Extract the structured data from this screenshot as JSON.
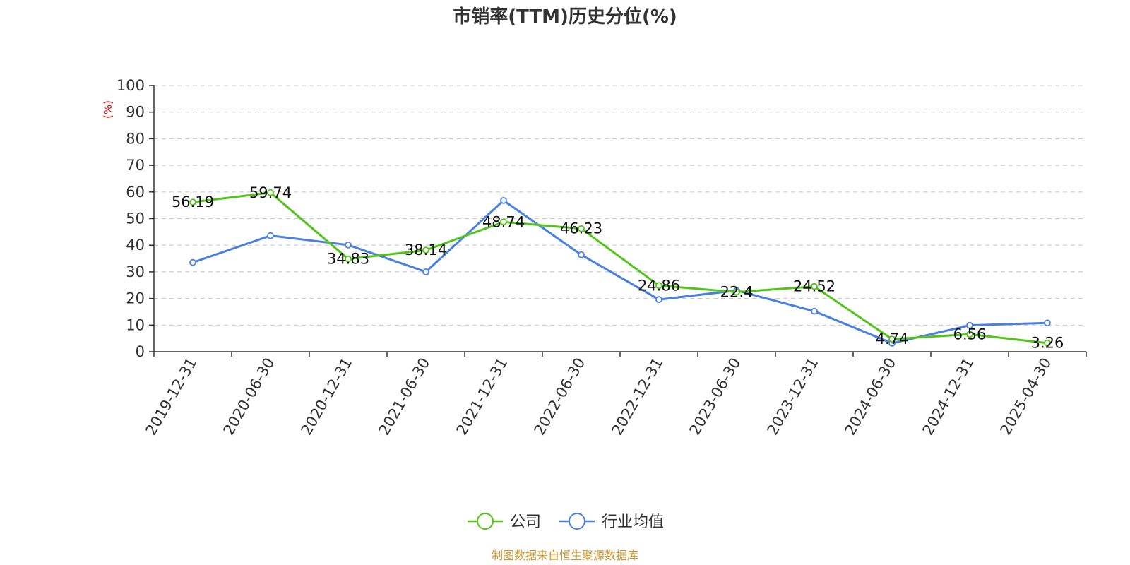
{
  "chart_data": {
    "type": "line",
    "title": "市销率(TTM)历史分位(%)",
    "ylabel": "(%)",
    "xlabel": "",
    "ylim": [
      0,
      100
    ],
    "yticks": [
      0,
      10,
      20,
      30,
      40,
      50,
      60,
      70,
      80,
      90,
      100
    ],
    "grid": true,
    "legend_position": "bottom",
    "categories": [
      "2019-12-31",
      "2020-06-30",
      "2020-12-31",
      "2021-06-30",
      "2021-12-31",
      "2022-06-30",
      "2022-12-31",
      "2023-06-30",
      "2023-12-31",
      "2024-06-30",
      "2024-12-31",
      "2025-04-30"
    ],
    "series": [
      {
        "name": "公司",
        "color": "#52c41a",
        "values": [
          56.19,
          59.74,
          34.83,
          38.14,
          48.74,
          46.23,
          24.86,
          22.4,
          24.52,
          4.74,
          6.56,
          3.26
        ],
        "labels": [
          "56.19",
          "59.74",
          "34.83",
          "38.14",
          "48.74",
          "46.23",
          "24.86",
          "22.4",
          "24.52",
          "4.74",
          "6.56",
          "3.26"
        ]
      },
      {
        "name": "行业均值",
        "color": "#4a80e0",
        "values": [
          33.5,
          43.6,
          40.1,
          30.0,
          56.8,
          36.4,
          19.6,
          23.0,
          15.2,
          3.2,
          9.9,
          10.8
        ]
      }
    ],
    "source": "制图数据来自恒生聚源数据库"
  }
}
